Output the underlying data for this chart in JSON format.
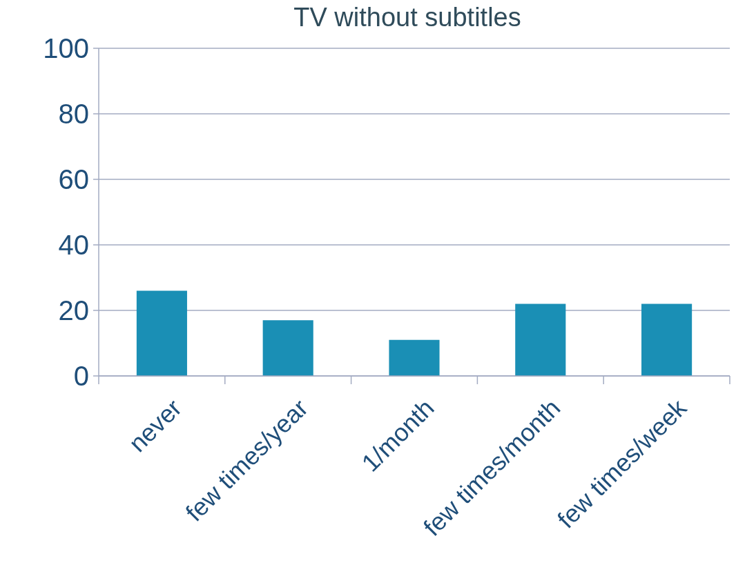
{
  "chart_data": {
    "type": "bar",
    "title": "TV without subtitles",
    "categories": [
      "never",
      "few times/year",
      "1/month",
      "few times/month",
      "few times/week"
    ],
    "values": [
      26,
      17,
      11,
      22,
      22
    ],
    "color": "#1a8fb5",
    "ylim": [
      0,
      100
    ],
    "yticks": [
      0,
      20,
      40,
      60,
      80,
      100
    ],
    "grid": "y"
  }
}
